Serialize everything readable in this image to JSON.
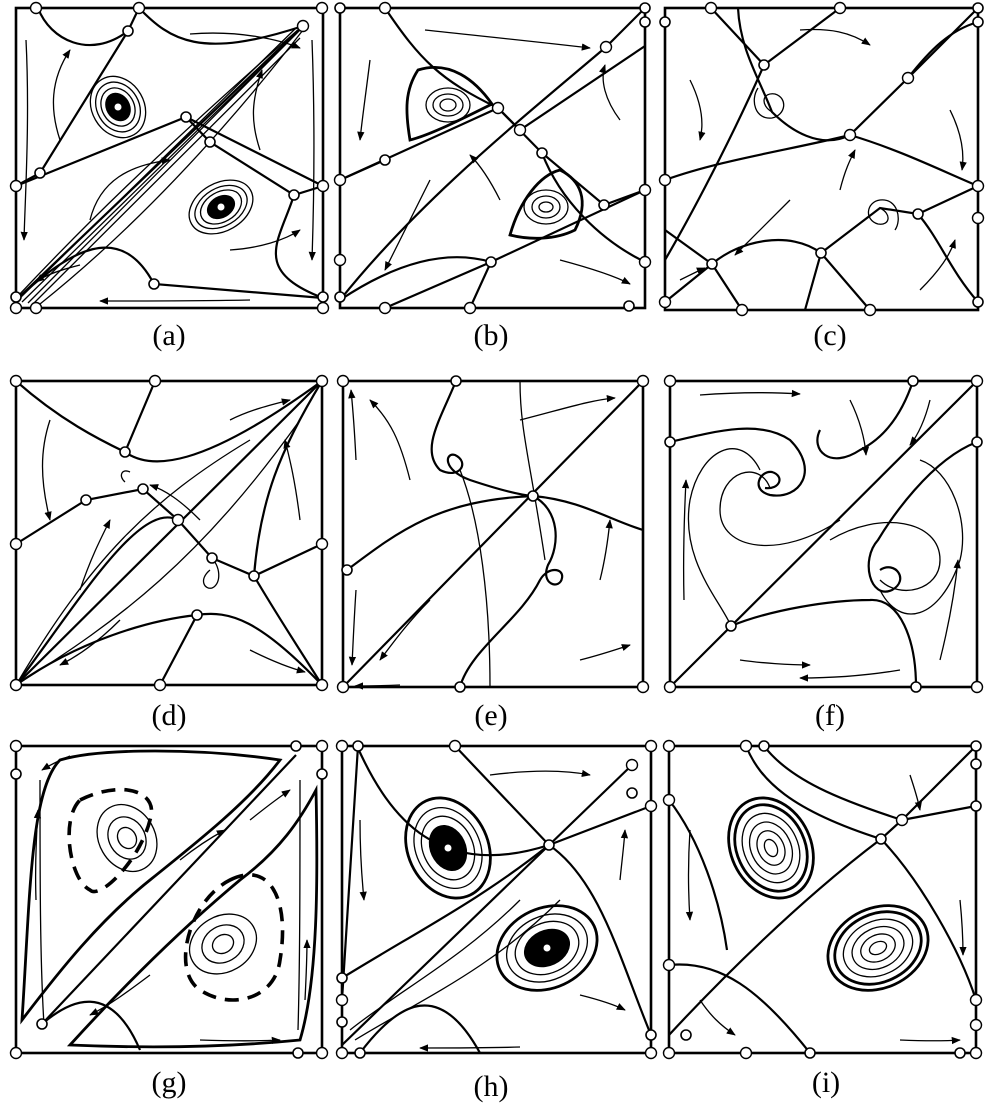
{
  "figure": {
    "panels": [
      {
        "id": "a",
        "label": "(a)"
      },
      {
        "id": "b",
        "label": "(b)"
      },
      {
        "id": "c",
        "label": "(c)"
      },
      {
        "id": "d",
        "label": "(d)"
      },
      {
        "id": "e",
        "label": "(e)"
      },
      {
        "id": "f",
        "label": "(f)"
      },
      {
        "id": "g",
        "label": "(g)"
      },
      {
        "id": "h",
        "label": "(h)"
      },
      {
        "id": "i",
        "label": "(i)"
      }
    ]
  },
  "colors": {
    "stroke": "#000000",
    "background": "#ffffff",
    "open_point_fill": "#ffffff",
    "hatched_point_fill": "#555555"
  }
}
